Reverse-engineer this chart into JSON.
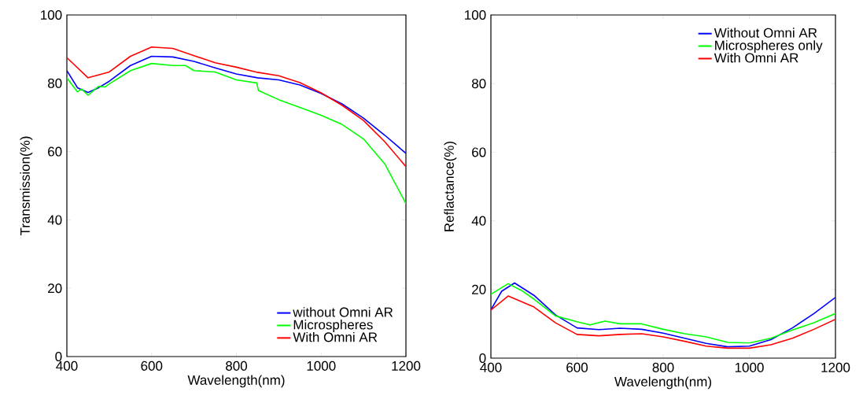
{
  "chart_data": [
    {
      "type": "line",
      "xlabel": "Wavelength(nm)",
      "ylabel": "Transmission(%)",
      "xlim": [
        400,
        1200
      ],
      "ylim": [
        0,
        100
      ],
      "xticks": [
        400,
        600,
        800,
        1000,
        1200
      ],
      "yticks": [
        0,
        20,
        40,
        60,
        80,
        100
      ],
      "legend": "bottom right",
      "grid": false,
      "series": [
        {
          "name": "without Omni AR",
          "color": "#0000ff",
          "x": [
            400,
            425,
            450,
            475,
            500,
            550,
            600,
            650,
            700,
            750,
            800,
            850,
            900,
            950,
            1000,
            1050,
            1100,
            1150,
            1200
          ],
          "values": [
            83.7,
            78.7,
            77.3,
            78.7,
            80.6,
            85.2,
            87.9,
            87.7,
            86.4,
            84.5,
            82.7,
            81.6,
            81,
            79.5,
            77,
            73.9,
            69.8,
            64.8,
            59.5
          ]
        },
        {
          "name": "Microspheres",
          "color": "#00ff00",
          "x": [
            400,
            425,
            435,
            450,
            475,
            490,
            500,
            550,
            600,
            650,
            680,
            700,
            750,
            800,
            848,
            852,
            900,
            950,
            1000,
            1050,
            1100,
            1150,
            1200
          ],
          "values": [
            81.6,
            77.5,
            78.3,
            76.5,
            79.1,
            78.9,
            79.8,
            83.7,
            85.8,
            85.2,
            85.2,
            83.7,
            83.3,
            81,
            80.1,
            77.9,
            75.2,
            72.9,
            70.6,
            67.9,
            63.7,
            56.4,
            44.8
          ]
        },
        {
          "name": "With Omni AR",
          "color": "#ff0000",
          "x": [
            400,
            450,
            500,
            550,
            600,
            650,
            700,
            750,
            800,
            850,
            900,
            950,
            1000,
            1050,
            1100,
            1150,
            1200
          ],
          "values": [
            87.5,
            81.6,
            83.3,
            87.9,
            90.6,
            90.2,
            88.1,
            86,
            84.7,
            83.2,
            82.2,
            80.2,
            77.2,
            73.5,
            69.1,
            62.9,
            55.6
          ]
        }
      ]
    },
    {
      "type": "line",
      "xlabel": "Wavelength(nm)",
      "ylabel": "Reflactance(%)",
      "xlim": [
        400,
        1200
      ],
      "ylim": [
        0,
        100
      ],
      "xticks": [
        400,
        600,
        800,
        1000,
        1200
      ],
      "yticks": [
        0,
        20,
        40,
        60,
        80,
        100
      ],
      "legend": "top right",
      "grid": false,
      "series": [
        {
          "name": "Without Omni AR",
          "color": "#0000ff",
          "x": [
            400,
            425,
            455,
            500,
            550,
            600,
            650,
            700,
            750,
            800,
            850,
            900,
            950,
            1000,
            1050,
            1100,
            1150,
            1200
          ],
          "values": [
            14.1,
            19.5,
            21.9,
            18.3,
            12.6,
            8.8,
            8.3,
            8.7,
            8.4,
            7.3,
            5.8,
            4.3,
            3.3,
            3.5,
            5.4,
            8.8,
            13,
            17.7
          ]
        },
        {
          "name": "Microspheres only",
          "color": "#00ff00",
          "x": [
            400,
            440,
            470,
            500,
            550,
            600,
            630,
            665,
            700,
            750,
            800,
            850,
            900,
            950,
            1000,
            1050,
            1100,
            1150,
            1200
          ],
          "values": [
            18.6,
            21.7,
            19.8,
            17.2,
            12.3,
            10.6,
            9.7,
            10.8,
            10,
            10,
            8.4,
            7.1,
            6.2,
            4.6,
            4.4,
            5.8,
            8.2,
            10.3,
            13
          ]
        },
        {
          "name": "With Omni AR",
          "color": "#ff0000",
          "x": [
            400,
            440,
            500,
            550,
            600,
            650,
            700,
            750,
            800,
            850,
            900,
            950,
            1000,
            1050,
            1100,
            1150,
            1200
          ],
          "values": [
            14,
            18.1,
            14.9,
            10.3,
            6.9,
            6.5,
            6.9,
            7.1,
            6.2,
            4.9,
            3.5,
            2.9,
            2.9,
            3.9,
            5.8,
            8.4,
            11.3
          ]
        }
      ]
    }
  ]
}
